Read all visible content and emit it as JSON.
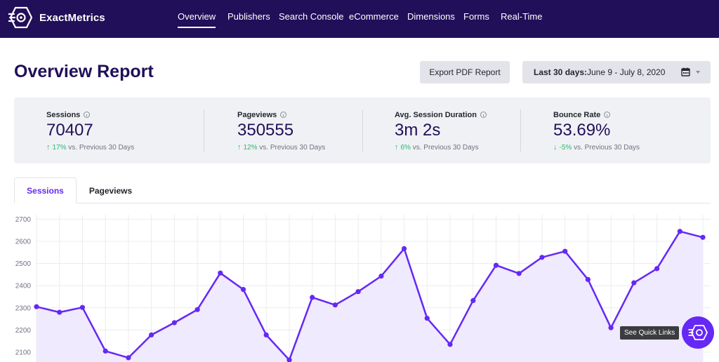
{
  "app": {
    "logo_text": "ExactMetrics"
  },
  "nav": {
    "items": [
      {
        "label": "Overview",
        "active": true
      },
      {
        "label": "Publishers"
      },
      {
        "label": "Search Console"
      },
      {
        "label": "eCommerce"
      },
      {
        "label": "Dimensions"
      },
      {
        "label": "Forms"
      },
      {
        "label": "Real-Time"
      }
    ]
  },
  "header": {
    "title": "Overview Report",
    "export_label": "Export PDF Report",
    "date_label": "Last 30 days:",
    "date_range": "June 9 - July 8, 2020"
  },
  "metrics": [
    {
      "label": "Sessions",
      "value": "70407",
      "change": "17%",
      "direction": "up",
      "comparison": "vs. Previous 30 Days"
    },
    {
      "label": "Pageviews",
      "value": "350555",
      "change": "12%",
      "direction": "up",
      "comparison": "vs. Previous 30 Days"
    },
    {
      "label": "Avg. Session Duration",
      "value": "3m 2s",
      "change": "6%",
      "direction": "up",
      "comparison": "vs. Previous 30 Days"
    },
    {
      "label": "Bounce Rate",
      "value": "53.69%",
      "change": "-5%",
      "direction": "down",
      "comparison": "vs. Previous 30 Days"
    }
  ],
  "tabs": [
    {
      "label": "Sessions",
      "active": true
    },
    {
      "label": "Pageviews",
      "active": false
    }
  ],
  "quick_links": {
    "tooltip": "See Quick Links"
  },
  "colors": {
    "nav_bg": "#210f59",
    "accent": "#6528f5",
    "positive": "#2bb673",
    "chart_fill": "#efeafd"
  },
  "chart_data": {
    "type": "area",
    "series": [
      {
        "values": [
          2305,
          2280,
          2302,
          2105,
          2075,
          2178,
          2233,
          2292,
          2457,
          2383,
          2178,
          2065,
          2347,
          2313,
          2373,
          2443,
          2567,
          2253,
          2135,
          2333,
          2492,
          2455,
          2528,
          2555,
          2428,
          2210,
          2413,
          2477,
          2645,
          2618
        ]
      }
    ],
    "yticks": [
      2100,
      2200,
      2300,
      2400,
      2500,
      2600,
      2700
    ],
    "ylim": [
      2050,
      2720
    ],
    "grid": true,
    "legend": "none"
  }
}
